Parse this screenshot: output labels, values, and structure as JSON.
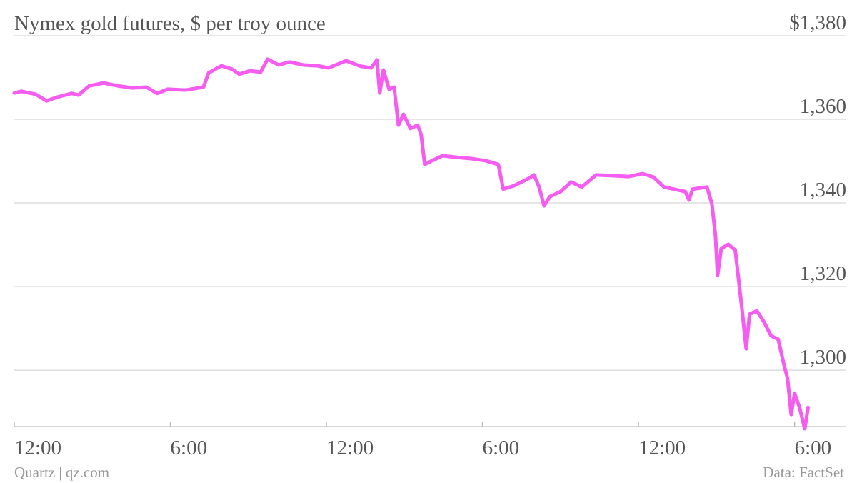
{
  "chart_data": {
    "type": "line",
    "title": "Nymex gold futures, $ per troy ounce",
    "source": "Data: FactSet",
    "credit": "Quartz | qz.com",
    "x": [
      0,
      0.27,
      0.82,
      1.24,
      1.65,
      2.2,
      2.47,
      2.88,
      3.43,
      3.98,
      4.53,
      5.08,
      5.49,
      5.9,
      6.59,
      7.27,
      7.47,
      7.96,
      8.37,
      8.65,
      9.06,
      9.47,
      9.74,
      10.16,
      10.57,
      11.12,
      11.66,
      12.08,
      12.76,
      13.31,
      13.72,
      13.94,
      14.05,
      14.19,
      14.41,
      14.6,
      14.77,
      14.96,
      15.23,
      15.51,
      15.64,
      15.78,
      16.06,
      16.47,
      17.02,
      17.57,
      18.12,
      18.61,
      18.8,
      19.21,
      19.76,
      19.98,
      20.18,
      20.37,
      20.59,
      21,
      21.41,
      21.82,
      22.37,
      23.06,
      23.61,
      24.16,
      24.57,
      24.98,
      25.8,
      25.94,
      26.08,
      26.63,
      26.82,
      26.96,
      27.04,
      27.18,
      27.45,
      27.72,
      28,
      28.14,
      28.27,
      28.55,
      28.82,
      29.1,
      29.37,
      29.59,
      29.73,
      29.87,
      30,
      30.19,
      30.39,
      30.52
    ],
    "series": [
      {
        "name": "Gold futures",
        "color": "#f55cf0",
        "values": [
          1366.3,
          1366.7,
          1366,
          1364.4,
          1365.3,
          1366.2,
          1365.8,
          1368,
          1368.7,
          1368,
          1367.5,
          1367.7,
          1366.2,
          1367.2,
          1367,
          1367.7,
          1371.1,
          1372.8,
          1372,
          1370.8,
          1371.6,
          1371.3,
          1374.4,
          1373,
          1373.7,
          1373,
          1372.8,
          1372.3,
          1374,
          1372.7,
          1372.3,
          1374.2,
          1366.3,
          1371.8,
          1367.2,
          1367.7,
          1358.6,
          1361.2,
          1357.8,
          1358.6,
          1356.4,
          1349.2,
          1350.1,
          1351.3,
          1350.9,
          1350.6,
          1350.1,
          1349.2,
          1343.3,
          1344.1,
          1345.8,
          1346.7,
          1343.8,
          1339.3,
          1341.5,
          1342.7,
          1345,
          1343.8,
          1346.7,
          1346.5,
          1346.3,
          1347,
          1346.2,
          1343.8,
          1342.7,
          1340.7,
          1343.3,
          1343.8,
          1339.8,
          1332.1,
          1322.7,
          1329.1,
          1330.1,
          1328.7,
          1313.4,
          1305.1,
          1313.4,
          1314.2,
          1311.6,
          1308.2,
          1307.4,
          1301.4,
          1298,
          1289.4,
          1294.5,
          1291.1,
          1286,
          1291.1
        ]
      }
    ],
    "xlim": [
      0,
      31.96
    ],
    "xticks": [
      {
        "value": 0,
        "label": "12:00"
      },
      {
        "value": 6,
        "label": "6:00"
      },
      {
        "value": 12,
        "label": "12:00"
      },
      {
        "value": 18,
        "label": "6:00"
      },
      {
        "value": 24,
        "label": "12:00"
      },
      {
        "value": 30,
        "label": "6:00"
      }
    ],
    "ylim": [
      1286,
      1380
    ],
    "yticks": [
      {
        "value": 1300,
        "label": "1,300"
      },
      {
        "value": 1320,
        "label": "1,320"
      },
      {
        "value": 1340,
        "label": "1,340"
      },
      {
        "value": 1360,
        "label": "1,360"
      },
      {
        "value": 1380,
        "label": "$1,380"
      }
    ],
    "grid": true
  }
}
